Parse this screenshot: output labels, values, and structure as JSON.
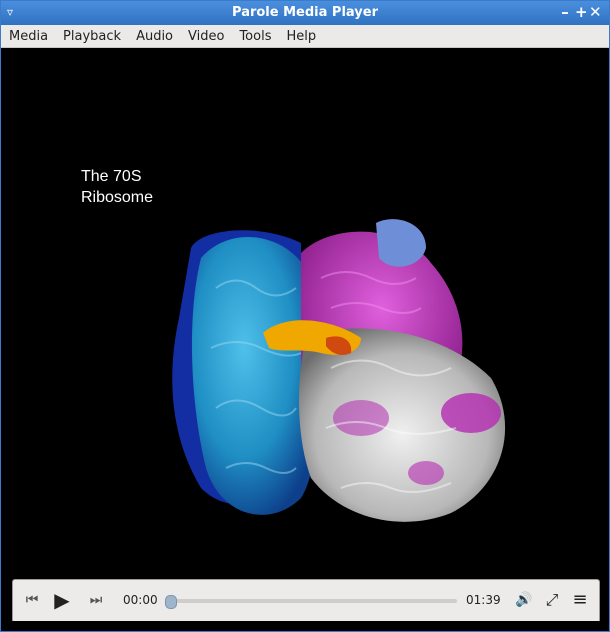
{
  "window": {
    "title": "Parole Media Player"
  },
  "titlebar": {
    "menu_glyph": "▿",
    "minimize": "–",
    "maximize": "+",
    "close": "✕"
  },
  "menu": {
    "items": [
      "Media",
      "Playback",
      "Audio",
      "Video",
      "Tools",
      "Help"
    ]
  },
  "video": {
    "caption": "The 70S\nRibosome",
    "subject": "ribosome-3d-structure"
  },
  "controls": {
    "prev_glyph": "⏮",
    "play_glyph": "▶",
    "next_glyph": "⏭",
    "current_time": "00:00",
    "duration": "01:39",
    "progress_fraction": 0.0,
    "volume_icon": "speaker-icon",
    "fullscreen_icon": "fullscreen-icon",
    "playlist_icon": "playlist-icon",
    "volume_glyph": "🔊",
    "fullscreen_glyph": "⤢",
    "playlist_glyph": "≡"
  },
  "colors": {
    "titlebar": "#2f72c2",
    "subunit_large": "#1f8fc4",
    "subunit_small": "#c23fc0",
    "rna": "#d8d8d8",
    "trna": "#f0a800"
  }
}
